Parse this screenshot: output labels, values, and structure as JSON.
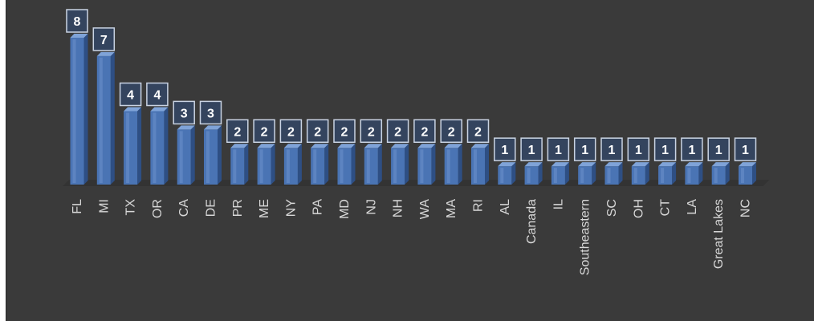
{
  "chart_data": {
    "type": "bar",
    "title": "",
    "xlabel": "",
    "ylabel": "",
    "categories": [
      "FL",
      "MI",
      "TX",
      "OR",
      "CA",
      "DE",
      "PR",
      "ME",
      "NY",
      "PA",
      "MD",
      "NJ",
      "NH",
      "WA",
      "MA",
      "RI",
      "AL",
      "Canada",
      "IL",
      "Southeastern",
      "SC",
      "OH",
      "CT",
      "LA",
      "Great Lakes",
      "NC"
    ],
    "values": [
      8,
      7,
      4,
      4,
      3,
      3,
      2,
      2,
      2,
      2,
      2,
      2,
      2,
      2,
      2,
      2,
      1,
      1,
      1,
      1,
      1,
      1,
      1,
      1,
      1,
      1
    ],
    "ylim": [
      0,
      8
    ],
    "grid": false,
    "legend": "none",
    "colors": {
      "background": "#3a3a3a",
      "bar_front": "#4a74b4",
      "bar_side": "#2e4f84",
      "bar_top": "#7fa3d8",
      "label_box": "#34445e",
      "label_border": "#c9d3e3"
    }
  }
}
